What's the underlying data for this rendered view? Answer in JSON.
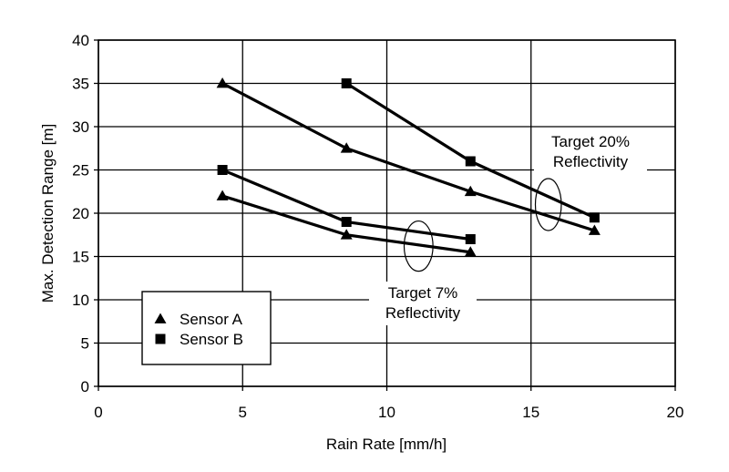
{
  "chart_data": {
    "type": "line",
    "xlabel": "Rain Rate [mm/h]",
    "ylabel": "Max. Detection Range [m]",
    "xlim": [
      0,
      20
    ],
    "ylim": [
      0,
      40
    ],
    "xticks": [
      0,
      5,
      10,
      15,
      20
    ],
    "yticks": [
      0,
      5,
      10,
      15,
      20,
      25,
      30,
      35,
      40
    ],
    "grid": true,
    "legend_position": "bottom-left",
    "series": [
      {
        "name": "Sensor A",
        "marker": "triangle",
        "group": "Target 20% Reflectivity",
        "x": [
          4.3,
          8.6,
          12.9,
          17.2
        ],
        "y": [
          35,
          27.5,
          22.5,
          18
        ]
      },
      {
        "name": "Sensor B",
        "marker": "square",
        "group": "Target 20% Reflectivity",
        "x": [
          8.6,
          12.9,
          17.2
        ],
        "y": [
          35,
          26,
          19.5
        ]
      },
      {
        "name": "Sensor A",
        "marker": "triangle",
        "group": "Target 7% Reflectivity",
        "x": [
          4.3,
          8.6,
          12.9
        ],
        "y": [
          22,
          17.5,
          15.5
        ]
      },
      {
        "name": "Sensor B",
        "marker": "square",
        "group": "Target 7% Reflectivity",
        "x": [
          4.3,
          8.6,
          12.9
        ],
        "y": [
          25,
          19,
          17
        ]
      }
    ],
    "legend": [
      {
        "label": "Sensor A",
        "marker": "triangle"
      },
      {
        "label": "Sensor B",
        "marker": "square"
      }
    ],
    "annotations": [
      {
        "lines": [
          "Target 20%",
          "Reflectivity"
        ],
        "ellipse_center": [
          15.6,
          21
        ],
        "ellipse_radii": [
          0.45,
          3
        ]
      },
      {
        "lines": [
          "Target 7%",
          "Reflectivity"
        ],
        "ellipse_center": [
          11.1,
          16.2
        ],
        "ellipse_radii": [
          0.5,
          2.9
        ]
      }
    ],
    "colors": {
      "line": "#000000",
      "grid": "#000000",
      "background": "#ffffff"
    }
  }
}
